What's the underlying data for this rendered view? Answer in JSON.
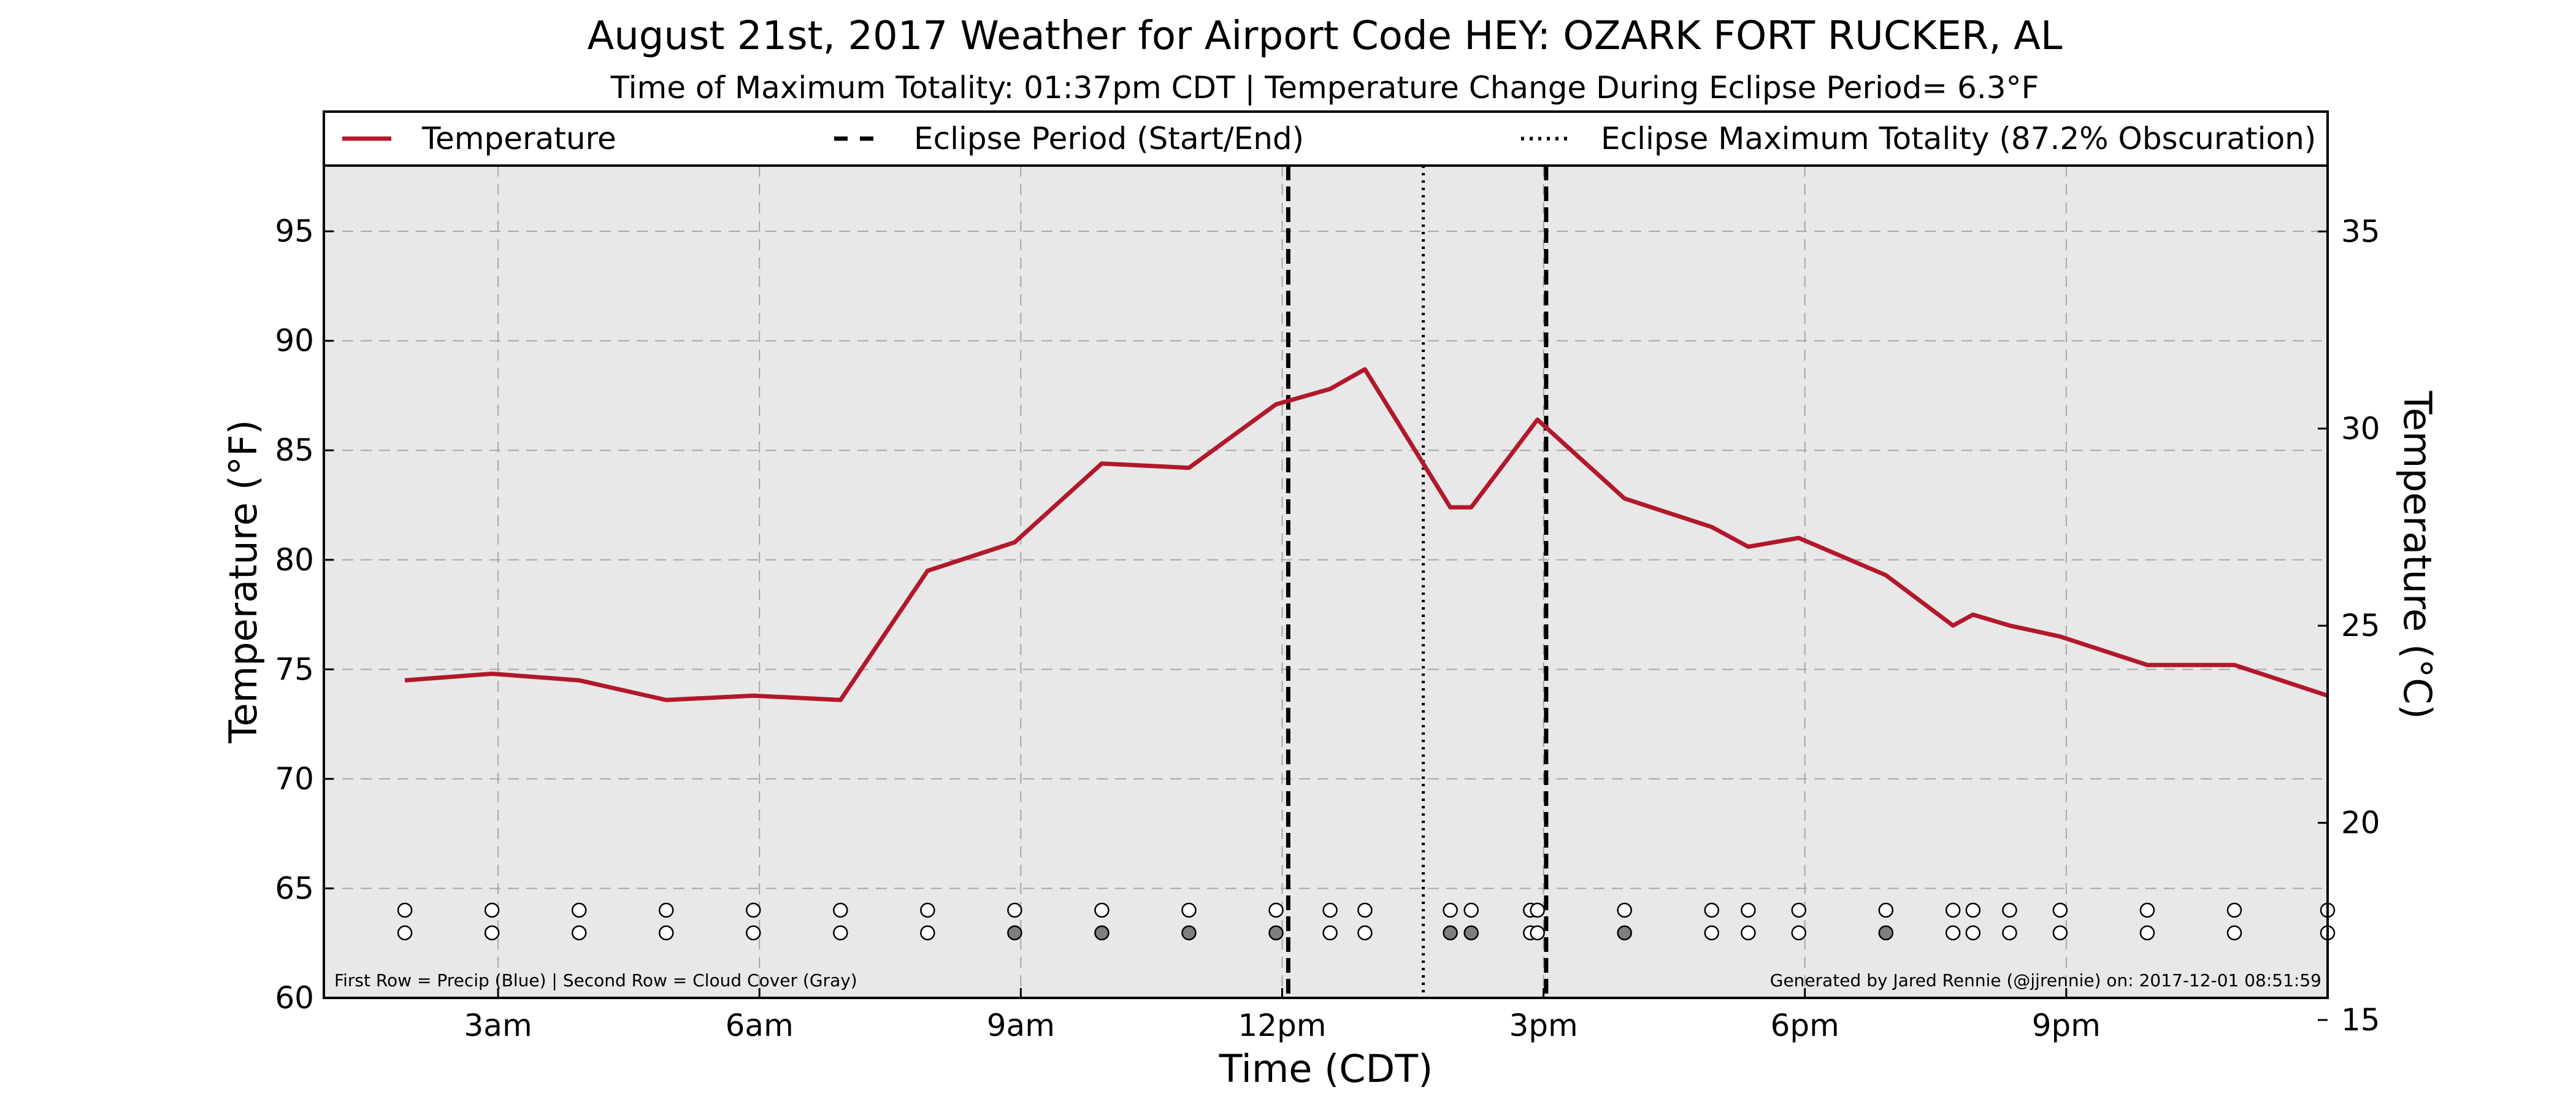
{
  "title": "August 21st, 2017 Weather for Airport Code HEY: OZARK FORT RUCKER, AL",
  "subtitle": "Time of Maximum Totality: 01:37pm CDT | Temperature Change During Eclipse Period= 6.3°F",
  "legend": {
    "temperature": "Temperature",
    "eclipse_period": "Eclipse Period (Start/End)",
    "eclipse_max": "Eclipse Maximum Totality (87.2% Obscuration)"
  },
  "footnote_left": "First Row = Precip (Blue) | Second Row = Cloud Cover (Gray)",
  "footnote_right": "Generated by Jared Rennie (@jjrennie) on: 2017-12-01 08:51:59",
  "colors": {
    "temperature_line": "#b2182b",
    "plot_background": "#e8e8e8",
    "cloud_filled": "#7f7f7f",
    "marker_empty": "#ffffff"
  },
  "chart_data": {
    "type": "line",
    "title": "August 21st, 2017 Weather for Airport Code HEY: OZARK FORT RUCKER, AL",
    "xlabel": "Time (CDT)",
    "ylabel": "Temperature (°F)",
    "ylabel_right": "Temperature (°C)",
    "xlim_hours": [
      1,
      24
    ],
    "ylim": [
      60,
      98
    ],
    "ylim_right_celsius": [
      15.56,
      36.67
    ],
    "x_ticks": [
      {
        "hour": 3,
        "label": "3am"
      },
      {
        "hour": 6,
        "label": "6am"
      },
      {
        "hour": 9,
        "label": "9am"
      },
      {
        "hour": 12,
        "label": "12pm"
      },
      {
        "hour": 15,
        "label": "3pm"
      },
      {
        "hour": 18,
        "label": "6pm"
      },
      {
        "hour": 21,
        "label": "9pm"
      }
    ],
    "y_ticks": [
      60,
      65,
      70,
      75,
      80,
      85,
      90,
      95
    ],
    "y_ticks_right": [
      15,
      20,
      25,
      30,
      35
    ],
    "grid": true,
    "legend_position": "top",
    "series": [
      {
        "name": "Temperature",
        "points": [
          {
            "hour": 1.93,
            "temp_f": 74.5
          },
          {
            "hour": 2.93,
            "temp_f": 74.8
          },
          {
            "hour": 3.93,
            "temp_f": 74.5
          },
          {
            "hour": 4.93,
            "temp_f": 73.6
          },
          {
            "hour": 5.93,
            "temp_f": 73.8
          },
          {
            "hour": 6.93,
            "temp_f": 73.6
          },
          {
            "hour": 7.93,
            "temp_f": 79.5
          },
          {
            "hour": 8.93,
            "temp_f": 80.8
          },
          {
            "hour": 9.93,
            "temp_f": 84.4
          },
          {
            "hour": 10.93,
            "temp_f": 84.2
          },
          {
            "hour": 11.93,
            "temp_f": 87.1
          },
          {
            "hour": 12.55,
            "temp_f": 87.8
          },
          {
            "hour": 12.95,
            "temp_f": 88.7
          },
          {
            "hour": 13.93,
            "temp_f": 82.4
          },
          {
            "hour": 14.17,
            "temp_f": 82.4
          },
          {
            "hour": 14.93,
            "temp_f": 86.4
          },
          {
            "hour": 15.93,
            "temp_f": 82.8
          },
          {
            "hour": 16.93,
            "temp_f": 81.5
          },
          {
            "hour": 17.35,
            "temp_f": 80.6
          },
          {
            "hour": 17.93,
            "temp_f": 81.0
          },
          {
            "hour": 18.93,
            "temp_f": 79.3
          },
          {
            "hour": 19.7,
            "temp_f": 77.0
          },
          {
            "hour": 19.93,
            "temp_f": 77.5
          },
          {
            "hour": 20.35,
            "temp_f": 77.0
          },
          {
            "hour": 20.93,
            "temp_f": 76.5
          },
          {
            "hour": 21.93,
            "temp_f": 75.2
          },
          {
            "hour": 22.93,
            "temp_f": 75.2
          },
          {
            "hour": 24.0,
            "temp_f": 73.8
          }
        ]
      }
    ],
    "eclipse_start_hour": 12.07,
    "eclipse_max_hour": 13.62,
    "eclipse_end_hour": 15.03,
    "observations": [
      {
        "hour": 1.93,
        "precip": "none",
        "cloud": "clear"
      },
      {
        "hour": 2.93,
        "precip": "none",
        "cloud": "clear"
      },
      {
        "hour": 3.93,
        "precip": "none",
        "cloud": "clear"
      },
      {
        "hour": 4.93,
        "precip": "none",
        "cloud": "clear"
      },
      {
        "hour": 5.93,
        "precip": "none",
        "cloud": "clear"
      },
      {
        "hour": 6.93,
        "precip": "none",
        "cloud": "clear"
      },
      {
        "hour": 7.93,
        "precip": "none",
        "cloud": "clear"
      },
      {
        "hour": 8.93,
        "precip": "none",
        "cloud": "cloudy"
      },
      {
        "hour": 9.93,
        "precip": "none",
        "cloud": "cloudy"
      },
      {
        "hour": 10.93,
        "precip": "none",
        "cloud": "cloudy"
      },
      {
        "hour": 11.93,
        "precip": "none",
        "cloud": "cloudy"
      },
      {
        "hour": 12.55,
        "precip": "none",
        "cloud": "clear"
      },
      {
        "hour": 12.95,
        "precip": "none",
        "cloud": "clear"
      },
      {
        "hour": 13.93,
        "precip": "none",
        "cloud": "cloudy"
      },
      {
        "hour": 14.17,
        "precip": "none",
        "cloud": "cloudy"
      },
      {
        "hour": 14.85,
        "precip": "none",
        "cloud": "clear"
      },
      {
        "hour": 14.93,
        "precip": "none",
        "cloud": "clear"
      },
      {
        "hour": 15.93,
        "precip": "none",
        "cloud": "cloudy"
      },
      {
        "hour": 16.93,
        "precip": "none",
        "cloud": "clear"
      },
      {
        "hour": 17.35,
        "precip": "none",
        "cloud": "clear"
      },
      {
        "hour": 17.93,
        "precip": "none",
        "cloud": "clear"
      },
      {
        "hour": 18.93,
        "precip": "none",
        "cloud": "cloudy"
      },
      {
        "hour": 19.7,
        "precip": "none",
        "cloud": "clear"
      },
      {
        "hour": 19.93,
        "precip": "none",
        "cloud": "clear"
      },
      {
        "hour": 20.35,
        "precip": "none",
        "cloud": "clear"
      },
      {
        "hour": 20.93,
        "precip": "none",
        "cloud": "clear"
      },
      {
        "hour": 21.93,
        "precip": "none",
        "cloud": "clear"
      },
      {
        "hour": 22.93,
        "precip": "none",
        "cloud": "clear"
      },
      {
        "hour": 24.0,
        "precip": "none",
        "cloud": "clear"
      }
    ]
  }
}
